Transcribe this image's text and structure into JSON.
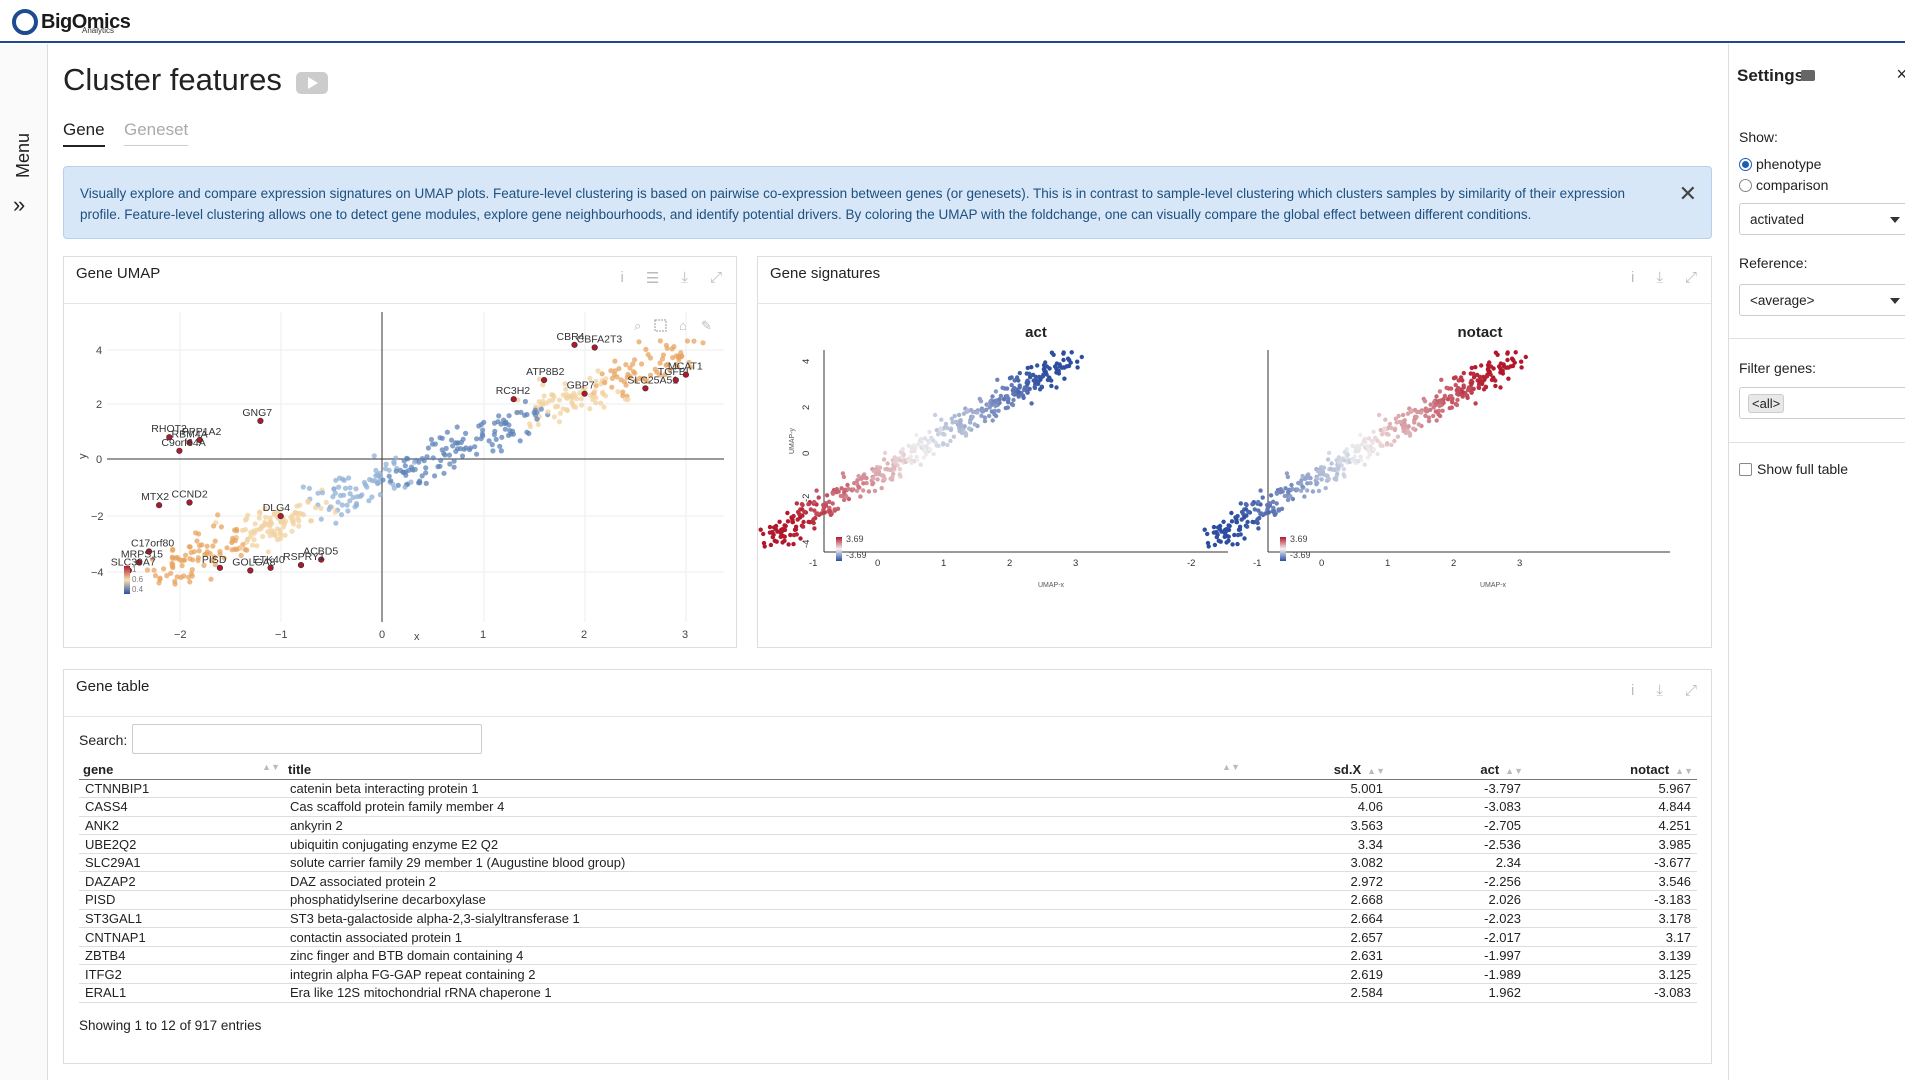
{
  "app": {
    "logo_main": "BigOmics",
    "logo_sub": "Analytics"
  },
  "nav": {
    "menu_label": "Menu",
    "expand_glyph": "»"
  },
  "page": {
    "title": "Cluster features",
    "tabs": [
      "Gene",
      "Geneset"
    ],
    "info_text": "Visually explore and compare expression signatures on UMAP plots. Feature-level clustering is based on pairwise co-expression between genes (or genesets). This is in contrast to sample-level clustering which clusters samples by similarity of their expression profile. Feature-level clustering allows one to detect gene modules, explore gene neighbourhoods, and identify potential drivers. By coloring the UMAP with the foldchange, one can visually compare the global effect between different conditions."
  },
  "umap_card": {
    "title": "Gene UMAP",
    "xlabel": "x",
    "ylabel": "y",
    "x_ticks": [
      "−2",
      "−1",
      "0",
      "1",
      "2",
      "3"
    ],
    "y_ticks": [
      "4",
      "2",
      "0",
      "−2",
      "−4"
    ],
    "legend_ticks": [
      "1",
      "0.6",
      "0.4"
    ],
    "labels": [
      "CBR4",
      "CBFA2T3",
      "ATP8B2",
      "SLC25A51",
      "RC3H2",
      "GBP7",
      "GNG7",
      "RHOT2",
      "RBM4A",
      "PPP1A2",
      "C9orf64A",
      "DLG4",
      "MTX2",
      "CCND2",
      "C17orf80",
      "MRPS15",
      "SLC39A7",
      "PISD",
      "ACBD5",
      "RSPRY1",
      "ETK40",
      "GOLGA8",
      "TGFBI",
      "MCAT1"
    ]
  },
  "signatures_card": {
    "title": "Gene signatures",
    "panels": [
      "act",
      "notact"
    ],
    "xlabel": "UMAP-x",
    "ylabel": "UMAP-y",
    "x_ticks": [
      "-2",
      "-1",
      "0",
      "1",
      "2",
      "3"
    ],
    "y_ticks": [
      "4",
      "2",
      "0",
      "-2",
      "-4"
    ],
    "legend_max": "3.69",
    "legend_min": "-3.69"
  },
  "table_card": {
    "title": "Gene table",
    "search_label": "Search:",
    "search_value": "",
    "columns": [
      "gene",
      "title",
      "sd.X",
      "act",
      "notact"
    ],
    "rows": [
      [
        "CTNNBIP1",
        "catenin beta interacting protein 1",
        "5.001",
        "-3.797",
        "5.967"
      ],
      [
        "CASS4",
        "Cas scaffold protein family member 4",
        "4.06",
        "-3.083",
        "4.844"
      ],
      [
        "ANK2",
        "ankyrin 2",
        "3.563",
        "-2.705",
        "4.251"
      ],
      [
        "UBE2Q2",
        "ubiquitin conjugating enzyme E2 Q2",
        "3.34",
        "-2.536",
        "3.985"
      ],
      [
        "SLC29A1",
        "solute carrier family 29 member 1 (Augustine blood group)",
        "3.082",
        "2.34",
        "-3.677"
      ],
      [
        "DAZAP2",
        "DAZ associated protein 2",
        "2.972",
        "-2.256",
        "3.546"
      ],
      [
        "PISD",
        "phosphatidylserine decarboxylase",
        "2.668",
        "2.026",
        "-3.183"
      ],
      [
        "ST3GAL1",
        "ST3 beta-galactoside alpha-2,3-sialyltransferase 1",
        "2.664",
        "-2.023",
        "3.178"
      ],
      [
        "CNTNAP1",
        "contactin associated protein 1",
        "2.657",
        "-2.017",
        "3.17"
      ],
      [
        "ZBTB4",
        "zinc finger and BTB domain containing 4",
        "2.631",
        "-1.997",
        "3.139"
      ],
      [
        "ITFG2",
        "integrin alpha FG-GAP repeat containing 2",
        "2.619",
        "-1.989",
        "3.125"
      ],
      [
        "ERAL1",
        "Era like 12S mitochondrial rRNA chaperone 1",
        "2.584",
        "1.962",
        "-3.083"
      ]
    ],
    "info": "Showing 1 to 12 of 917 entries"
  },
  "settings": {
    "title": "Settings",
    "close": "×",
    "show_label": "Show:",
    "show_options": [
      "phenotype",
      "comparison"
    ],
    "show_selected": "phenotype",
    "contrast_value": "activated",
    "reference_label": "Reference:",
    "reference_value": "<average>",
    "filter_label": "Filter genes:",
    "filter_tag": "<all>",
    "full_table_label": "Show full table"
  },
  "colors": {
    "accent": "#1e4b8f",
    "info_bg": "#d7e7f7",
    "high": "#b2182b",
    "low": "#2c4da0"
  }
}
